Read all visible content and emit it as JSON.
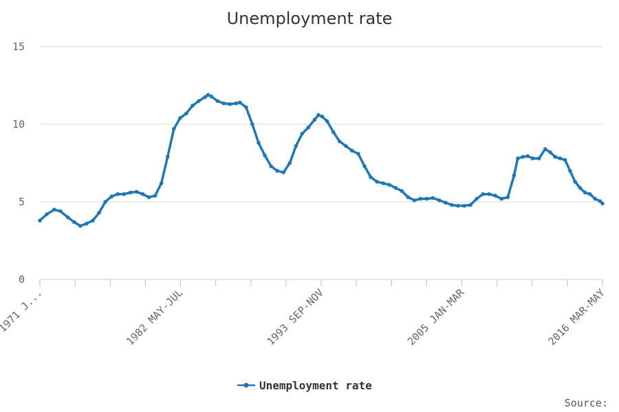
{
  "chart_data": {
    "type": "line",
    "title": "Unemployment rate",
    "xlabel": "",
    "ylabel": "",
    "ylim": [
      0,
      15
    ],
    "yticks": [
      0,
      5,
      10,
      15
    ],
    "grid": true,
    "legend_position": "bottom",
    "source_label": "Source:",
    "x_tick_labels": [
      "1971 J...",
      "1982 MAY-JUL",
      "1993 SEP-NOV",
      "2005 JAN-MAR",
      "2016 MAR-MAY"
    ],
    "series": [
      {
        "name": "Unemployment rate",
        "color": "#1f77b4",
        "points": [
          [
            1971.25,
            3.8
          ],
          [
            1971.8,
            4.2
          ],
          [
            1972.4,
            4.5
          ],
          [
            1972.9,
            4.4
          ],
          [
            1973.5,
            4.0
          ],
          [
            1974.0,
            3.7
          ],
          [
            1974.5,
            3.45
          ],
          [
            1975.0,
            3.6
          ],
          [
            1975.5,
            3.8
          ],
          [
            1976.0,
            4.3
          ],
          [
            1976.5,
            5.0
          ],
          [
            1977.0,
            5.35
          ],
          [
            1977.5,
            5.5
          ],
          [
            1978.0,
            5.5
          ],
          [
            1978.5,
            5.6
          ],
          [
            1979.0,
            5.65
          ],
          [
            1979.5,
            5.5
          ],
          [
            1980.0,
            5.3
          ],
          [
            1980.5,
            5.4
          ],
          [
            1981.0,
            6.2
          ],
          [
            1981.5,
            7.9
          ],
          [
            1982.0,
            9.7
          ],
          [
            1982.5,
            10.4
          ],
          [
            1983.0,
            10.7
          ],
          [
            1983.5,
            11.2
          ],
          [
            1984.0,
            11.5
          ],
          [
            1984.5,
            11.75
          ],
          [
            1984.75,
            11.9
          ],
          [
            1985.0,
            11.8
          ],
          [
            1985.5,
            11.5
          ],
          [
            1986.0,
            11.35
          ],
          [
            1986.5,
            11.3
          ],
          [
            1987.0,
            11.35
          ],
          [
            1987.3,
            11.4
          ],
          [
            1987.8,
            11.1
          ],
          [
            1988.3,
            10.0
          ],
          [
            1988.8,
            8.8
          ],
          [
            1989.3,
            8.0
          ],
          [
            1989.8,
            7.3
          ],
          [
            1990.3,
            7.0
          ],
          [
            1990.8,
            6.9
          ],
          [
            1991.3,
            7.5
          ],
          [
            1991.8,
            8.6
          ],
          [
            1992.3,
            9.4
          ],
          [
            1992.8,
            9.8
          ],
          [
            1993.3,
            10.3
          ],
          [
            1993.6,
            10.6
          ],
          [
            1993.9,
            10.5
          ],
          [
            1994.3,
            10.2
          ],
          [
            1994.8,
            9.5
          ],
          [
            1995.3,
            8.9
          ],
          [
            1995.8,
            8.6
          ],
          [
            1996.3,
            8.3
          ],
          [
            1996.8,
            8.1
          ],
          [
            1997.3,
            7.3
          ],
          [
            1997.8,
            6.6
          ],
          [
            1998.3,
            6.3
          ],
          [
            1998.8,
            6.2
          ],
          [
            1999.3,
            6.1
          ],
          [
            1999.8,
            5.9
          ],
          [
            2000.3,
            5.7
          ],
          [
            2000.8,
            5.3
          ],
          [
            2001.3,
            5.1
          ],
          [
            2001.8,
            5.2
          ],
          [
            2002.3,
            5.2
          ],
          [
            2002.8,
            5.25
          ],
          [
            2003.3,
            5.1
          ],
          [
            2003.8,
            4.95
          ],
          [
            2004.3,
            4.8
          ],
          [
            2004.8,
            4.75
          ],
          [
            2005.3,
            4.75
          ],
          [
            2005.8,
            4.8
          ],
          [
            2006.3,
            5.2
          ],
          [
            2006.8,
            5.5
          ],
          [
            2007.3,
            5.5
          ],
          [
            2007.8,
            5.4
          ],
          [
            2008.3,
            5.2
          ],
          [
            2008.8,
            5.3
          ],
          [
            2009.3,
            6.7
          ],
          [
            2009.6,
            7.8
          ],
          [
            2010.0,
            7.9
          ],
          [
            2010.4,
            7.95
          ],
          [
            2010.8,
            7.8
          ],
          [
            2011.3,
            7.8
          ],
          [
            2011.8,
            8.4
          ],
          [
            2012.2,
            8.2
          ],
          [
            2012.6,
            7.9
          ],
          [
            2013.0,
            7.8
          ],
          [
            2013.4,
            7.7
          ],
          [
            2013.8,
            7.0
          ],
          [
            2014.2,
            6.3
          ],
          [
            2014.6,
            5.9
          ],
          [
            2015.0,
            5.6
          ],
          [
            2015.4,
            5.5
          ],
          [
            2015.8,
            5.2
          ],
          [
            2016.2,
            5.05
          ],
          [
            2016.4,
            4.9
          ]
        ]
      }
    ]
  }
}
